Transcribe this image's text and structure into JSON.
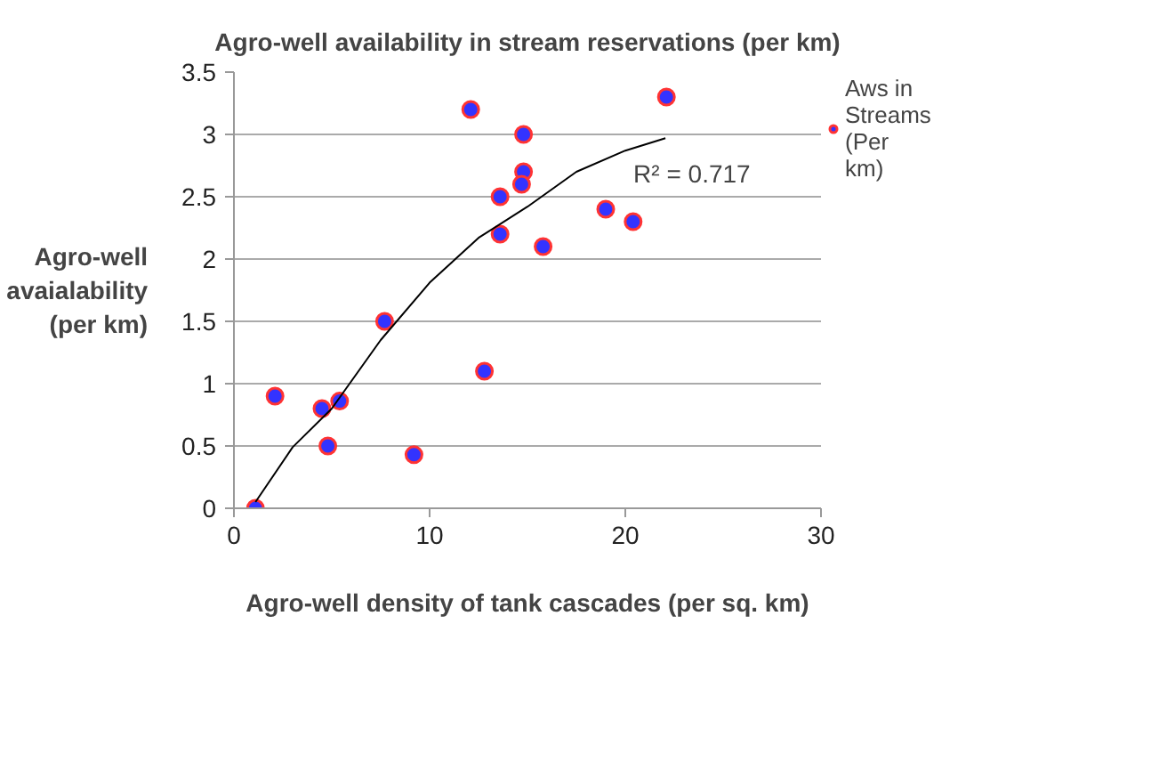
{
  "chart_data": {
    "type": "scatter",
    "title": "Agro-well availability in stream reservations (per km)",
    "xlabel": "Agro-well density of tank cascades (per sq. km)",
    "ylabel": "Agro-well avaialability (per km)",
    "series": [
      {
        "name": "Aws in Streams (Per km)",
        "marker": "circle",
        "color": "#3333ff",
        "x": [
          1.1,
          2.1,
          4.5,
          5.4,
          4.8,
          9.2,
          7.7,
          12.8,
          12.1,
          14.8,
          14.8,
          14.7,
          13.6,
          13.6,
          15.8,
          19.0,
          20.4,
          22.1
        ],
        "values": [
          0,
          0.9,
          0.8,
          0.86,
          0.5,
          0.43,
          1.5,
          1.1,
          3.2,
          3.0,
          2.7,
          2.6,
          2.5,
          2.2,
          2.1,
          2.4,
          2.3,
          3.3
        ]
      },
      {
        "type": "line",
        "color": "#000000",
        "x": [
          1.1,
          3,
          5,
          7.5,
          10,
          12.5,
          15,
          17.5,
          20,
          22.05
        ],
        "values": [
          0.05,
          0.49,
          0.8,
          1.35,
          1.81,
          2.17,
          2.42,
          2.7,
          2.87,
          2.97
        ]
      }
    ],
    "annotations": [
      "R² = 0.717"
    ],
    "xlim": [
      0,
      30
    ],
    "xticks": [
      0,
      10,
      20,
      30
    ],
    "ylim": [
      0,
      3.5
    ],
    "yticks": [
      0,
      0.5,
      1,
      1.5,
      2,
      2.5,
      3,
      3.5
    ],
    "grid": "y",
    "legend": "right"
  }
}
